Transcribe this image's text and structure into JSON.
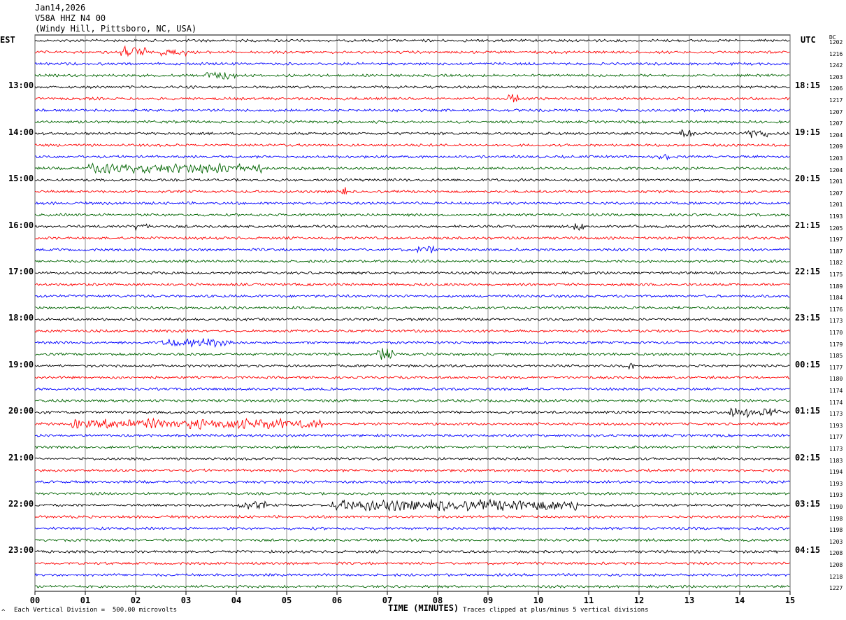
{
  "header": {
    "date": "Jan14,2026",
    "station": "V58A HHZ N4 00",
    "location": "(Windy Hill, Pittsboro, NC, USA)"
  },
  "left_axis_title": "EST",
  "right_axis_title": "UTC",
  "dc_label": "DC",
  "footer": {
    "scale_note": "Each Vertical Division =  500.00 microvolts",
    "clip_note": "Traces clipped at plus/minus 5 vertical divisions",
    "corner_mark": "^"
  },
  "chart_data": {
    "type": "line",
    "xlabel": "TIME (MINUTES)",
    "xlim": [
      0,
      15
    ],
    "x_ticks": [
      "00",
      "01",
      "02",
      "03",
      "04",
      "05",
      "06",
      "07",
      "08",
      "09",
      "10",
      "11",
      "12",
      "13",
      "14",
      "15"
    ],
    "trace_colors": [
      "#000000",
      "#ff0000",
      "#0000ff",
      "#006400"
    ],
    "est_hours": [
      "13:00",
      "14:00",
      "15:00",
      "16:00",
      "17:00",
      "18:00",
      "19:00",
      "20:00",
      "21:00",
      "22:00",
      "23:00"
    ],
    "utc_hours": [
      "18:15",
      "19:15",
      "20:15",
      "21:15",
      "22:15",
      "23:15",
      "00:15",
      "01:15",
      "02:15",
      "03:15",
      "04:15"
    ],
    "dc_offsets": [
      "1202",
      "1216",
      "1242",
      "1203",
      "1206",
      "1217",
      "1207",
      "1207",
      "1204",
      "1209",
      "1203",
      "1204",
      "1201",
      "1207",
      "1201",
      "1193",
      "1205",
      "1197",
      "1187",
      "1182",
      "1175",
      "1189",
      "1184",
      "1176",
      "1173",
      "1170",
      "1179",
      "1185",
      "1177",
      "1180",
      "1174",
      "1174",
      "1173",
      "1193",
      "1177",
      "1173",
      "1183",
      "1194",
      "1193",
      "1193",
      "1190",
      "1198",
      "1198",
      "1203",
      "1208",
      "1208",
      "1218",
      "1227"
    ],
    "events": [
      {
        "row": 1,
        "from": 1.7,
        "to": 2.2,
        "amp": 2.2
      },
      {
        "row": 1,
        "from": 2.5,
        "to": 3.0,
        "amp": 1.4
      },
      {
        "row": 3,
        "from": 3.4,
        "to": 4.0,
        "amp": 1.6
      },
      {
        "row": 5,
        "from": 9.4,
        "to": 9.6,
        "amp": 2.0
      },
      {
        "row": 8,
        "from": 12.8,
        "to": 13.1,
        "amp": 1.8
      },
      {
        "row": 8,
        "from": 14.1,
        "to": 14.6,
        "amp": 1.8
      },
      {
        "row": 10,
        "from": 12.4,
        "to": 12.6,
        "amp": 2.0
      },
      {
        "row": 11,
        "from": 1.0,
        "to": 4.5,
        "amp": 1.8
      },
      {
        "row": 13,
        "from": 6.0,
        "to": 6.2,
        "amp": 1.6
      },
      {
        "row": 16,
        "from": 2.0,
        "to": 2.3,
        "amp": 1.4
      },
      {
        "row": 16,
        "from": 10.7,
        "to": 10.9,
        "amp": 1.8
      },
      {
        "row": 18,
        "from": 7.6,
        "to": 8.0,
        "amp": 1.3
      },
      {
        "row": 26,
        "from": 2.5,
        "to": 3.9,
        "amp": 1.6
      },
      {
        "row": 27,
        "from": 6.8,
        "to": 7.1,
        "amp": 2.4
      },
      {
        "row": 28,
        "from": 11.8,
        "to": 11.9,
        "amp": 1.4
      },
      {
        "row": 32,
        "from": 13.8,
        "to": 14.8,
        "amp": 1.8
      },
      {
        "row": 33,
        "from": 0.7,
        "to": 5.7,
        "amp": 1.9
      },
      {
        "row": 40,
        "from": 4.0,
        "to": 4.6,
        "amp": 1.5
      },
      {
        "row": 40,
        "from": 5.9,
        "to": 10.8,
        "amp": 2.1
      }
    ]
  }
}
